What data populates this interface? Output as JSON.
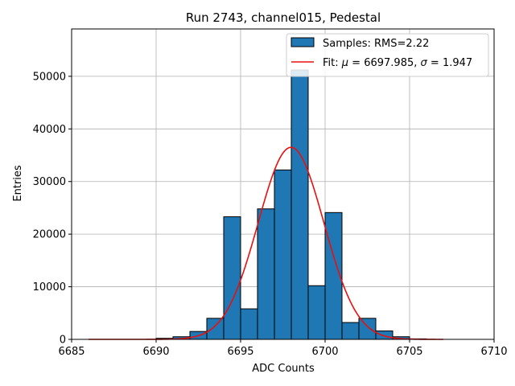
{
  "chart_data": {
    "type": "bar",
    "title": "Run 2743, channel015, Pedestal",
    "xlabel": "ADC Counts",
    "ylabel": "Entries",
    "xlim": [
      6685,
      6710
    ],
    "ylim": [
      0,
      59000
    ],
    "xticks": [
      6685,
      6690,
      6695,
      6700,
      6705,
      6710
    ],
    "yticks": [
      0,
      10000,
      20000,
      30000,
      40000,
      50000
    ],
    "grid": true,
    "legend_position": "top-right",
    "bin_width": 1,
    "bins": [
      {
        "left": 6690,
        "value": 200
      },
      {
        "left": 6691,
        "value": 500
      },
      {
        "left": 6692,
        "value": 1500
      },
      {
        "left": 6693,
        "value": 4000
      },
      {
        "left": 6694,
        "value": 23300
      },
      {
        "left": 6695,
        "value": 5800
      },
      {
        "left": 6696,
        "value": 24800
      },
      {
        "left": 6697,
        "value": 32200
      },
      {
        "left": 6698,
        "value": 51200
      },
      {
        "left": 6699,
        "value": 10200
      },
      {
        "left": 6700,
        "value": 24100
      },
      {
        "left": 6701,
        "value": 3200
      },
      {
        "left": 6702,
        "value": 4000
      },
      {
        "left": 6703,
        "value": 1600
      },
      {
        "left": 6704,
        "value": 500
      },
      {
        "left": 6705,
        "value": 100
      }
    ],
    "fit": {
      "mu": 6697.985,
      "sigma": 1.947,
      "amplitude": 36500,
      "x_range": [
        6686,
        6707
      ]
    },
    "series": [
      {
        "name": "Samples: RMS=2.22",
        "color": "#1f77b4"
      },
      {
        "name_prefix": "Fit: ",
        "mu_text": "6697.985",
        "sigma_text": "1.947",
        "color": "#e8100f"
      }
    ]
  }
}
